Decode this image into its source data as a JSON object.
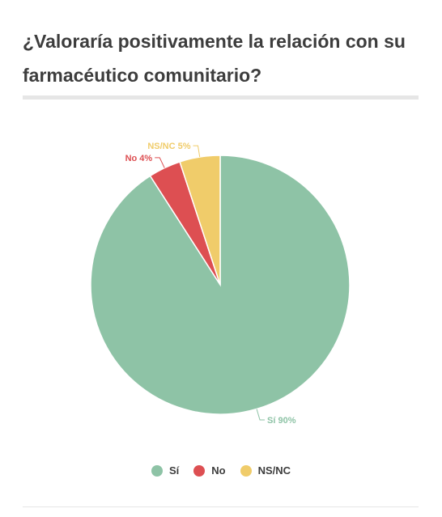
{
  "title": "¿Valoraría positivamente la relación con su farmacéutico comunitario?",
  "chart_data": {
    "type": "pie",
    "title": "¿Valoraría positivamente la relación con su farmacéutico comunitario?",
    "slices": [
      {
        "name": "Sí",
        "value": 90,
        "label": "Sí 90%",
        "color": "#8ec3a6"
      },
      {
        "name": "No",
        "value": 4,
        "label": "No 4%",
        "color": "#dd4f52"
      },
      {
        "name": "NS/NC",
        "value": 5,
        "label": "NS/NC 5%",
        "color": "#f0cc6a"
      }
    ],
    "legend_position": "bottom"
  },
  "legend": [
    {
      "label": "Sí",
      "color": "#8ec3a6"
    },
    {
      "label": "No",
      "color": "#dd4f52"
    },
    {
      "label": "NS/NC",
      "color": "#f0cc6a"
    }
  ]
}
